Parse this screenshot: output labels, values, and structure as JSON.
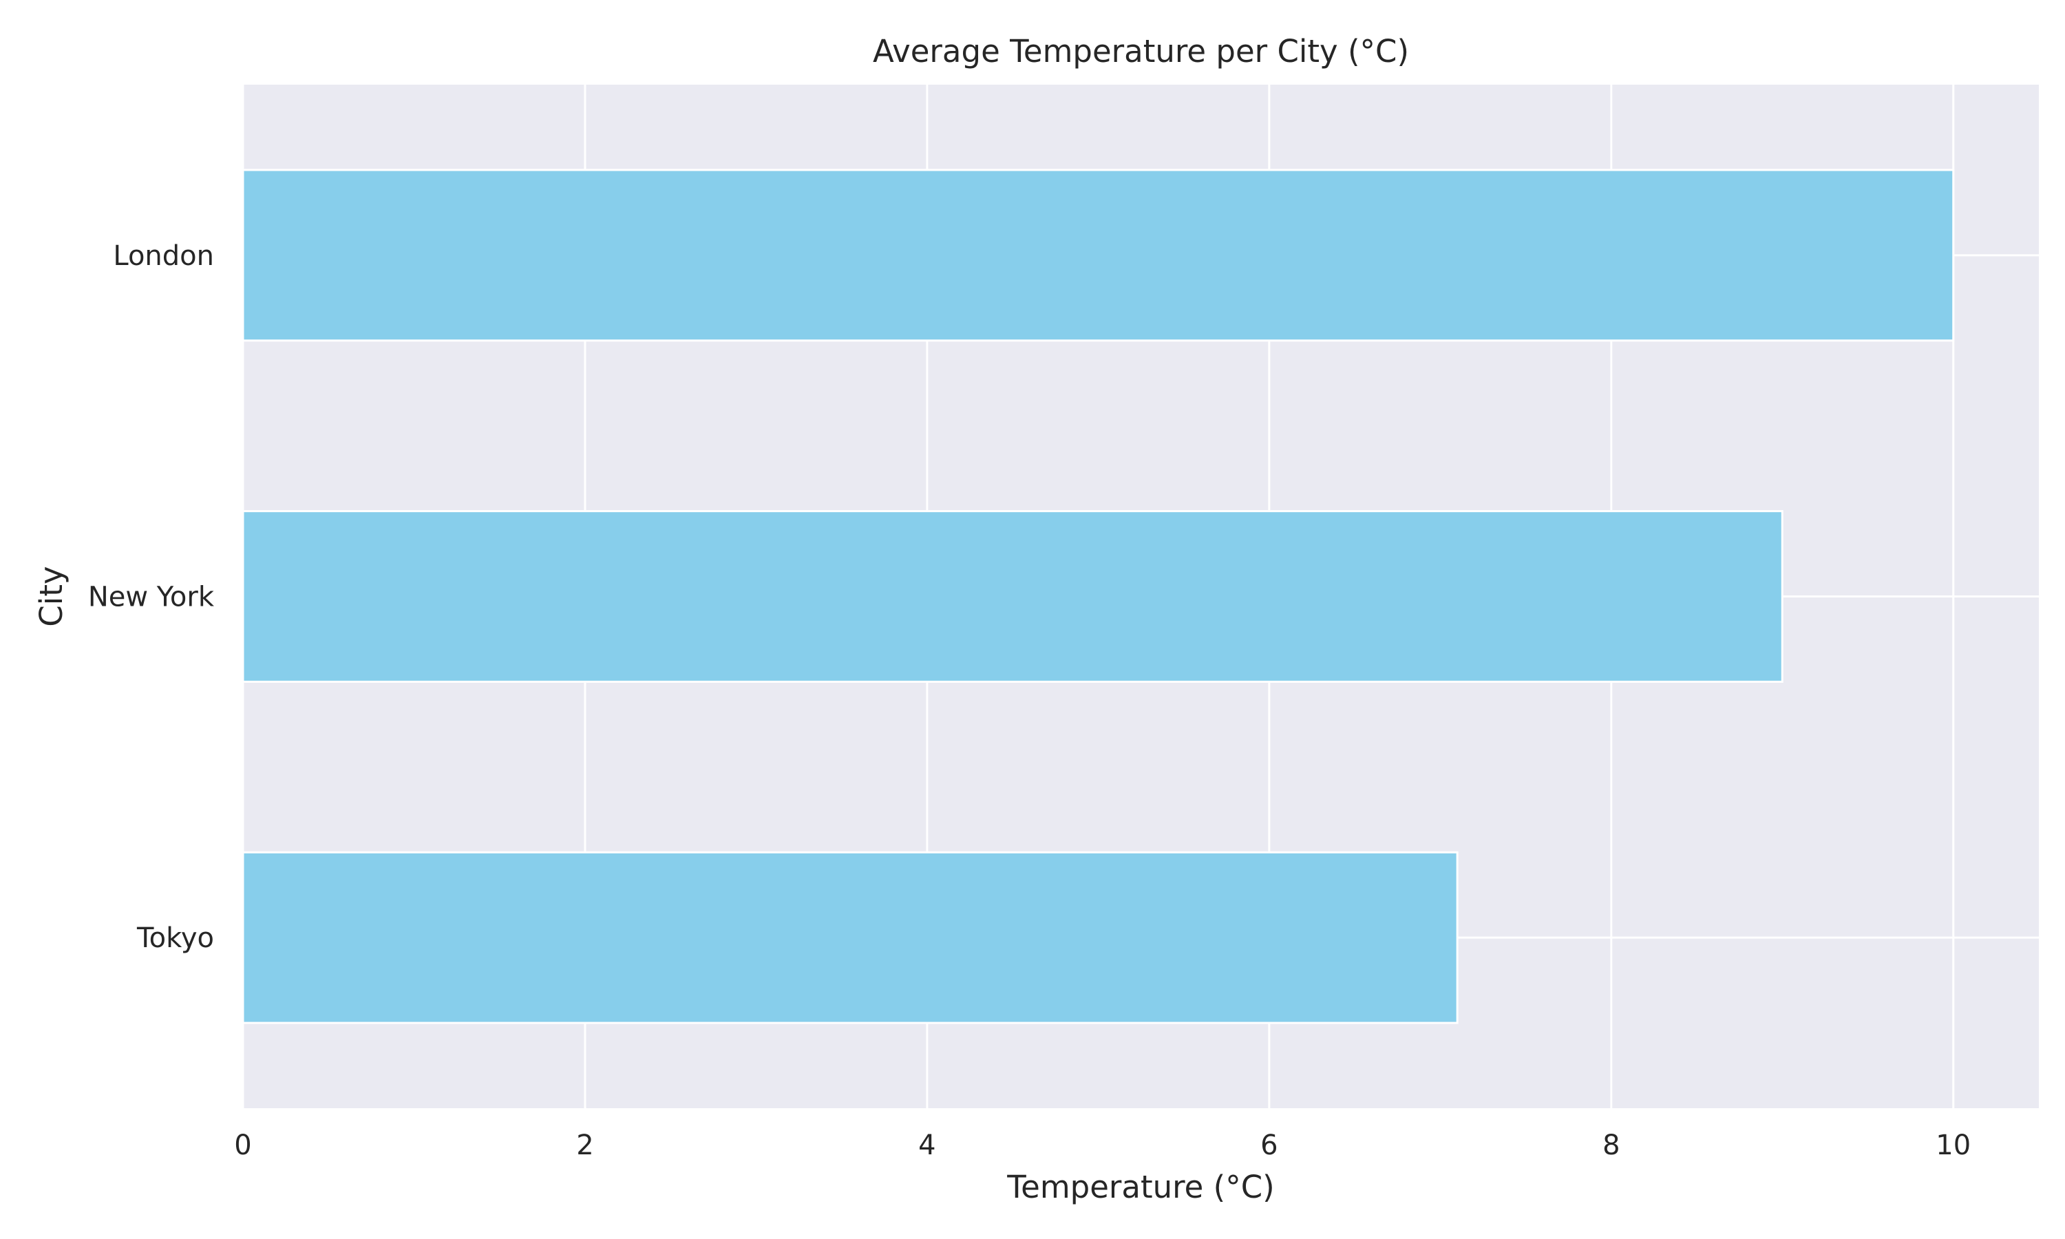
{
  "chart_data": {
    "type": "bar",
    "orientation": "horizontal",
    "title": "Average Temperature per City (°C)",
    "xlabel": "Temperature (°C)",
    "ylabel": "City",
    "categories": [
      "London",
      "New York",
      "Tokyo"
    ],
    "series": [
      {
        "values": [
          10.0,
          9.0,
          7.1
        ]
      }
    ],
    "xlim": [
      0,
      10.5
    ],
    "xticks": [
      0,
      2,
      4,
      6,
      8,
      10
    ],
    "grid": true,
    "legend": "none",
    "colors": {
      "bar": "#87ceeb",
      "plot_background": "#eaeaf2",
      "grid": "#ffffff",
      "text": "#262626"
    }
  }
}
